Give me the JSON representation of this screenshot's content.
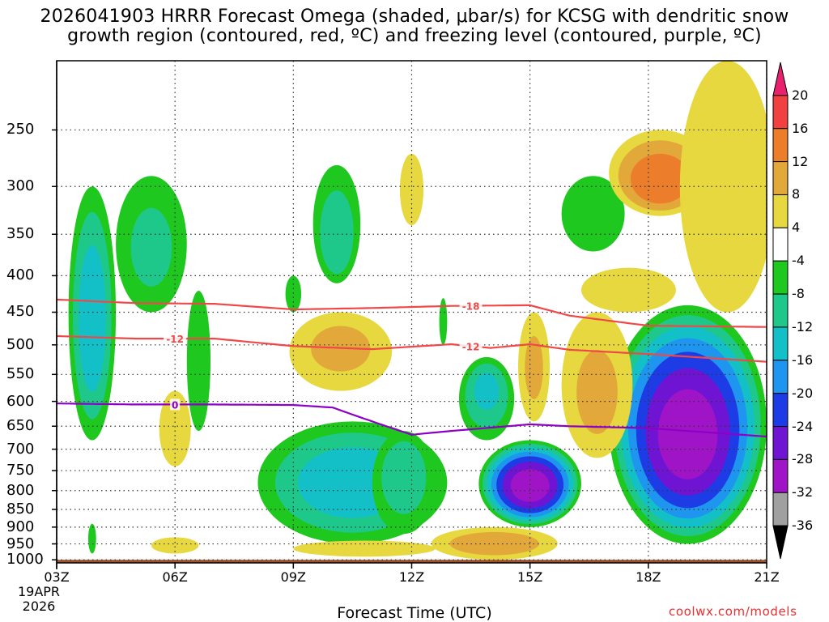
{
  "title": {
    "line1": "2026041903 HRRR Forecast Omega (shaded, μbar/s) for KCSG with dendritic snow",
    "line2": "growth region (contoured, red, ºC) and freezing level (contoured, purple, ºC)"
  },
  "footer": {
    "xlabel": "Forecast Time (UTC)",
    "date_line1": "19APR",
    "date_line2": "2026",
    "credit": "coolwx.com/models"
  },
  "colors": {
    "dgz_contour": "#f04848",
    "freezing_contour": "#8c00c8",
    "terrain": "#a0522d"
  },
  "chart_data": {
    "type": "heatmap",
    "title": "2026041903 HRRR Forecast Omega (shaded, μbar/s) for KCSG with dendritic snow growth region (contoured, red, ºC) and freezing level (contoured, purple, ºC)",
    "xlabel": "Forecast Time (UTC)",
    "ylabel": "",
    "x_ticks": [
      "03Z",
      "06Z",
      "09Z",
      "12Z",
      "15Z",
      "18Z",
      "21Z"
    ],
    "x_hours": [
      3,
      6,
      9,
      12,
      15,
      18,
      21
    ],
    "xlim": [
      3,
      21
    ],
    "y_ticks": [
      250,
      300,
      350,
      400,
      450,
      500,
      550,
      600,
      650,
      700,
      750,
      800,
      850,
      900,
      950,
      1000
    ],
    "ylim_hPa": [
      200,
      1010
    ],
    "y_scale": "log-pressure (inverted)",
    "grid": "dotted",
    "surface_pressure_hPa": 1000,
    "colorbar": {
      "label_values": [
        20,
        16,
        12,
        8,
        4,
        -4,
        -8,
        -12,
        -16,
        -20,
        -24,
        -28,
        -32,
        -36
      ],
      "bins": [
        {
          "lo": 20,
          "hi": 24,
          "color": "#e8206e"
        },
        {
          "lo": 16,
          "hi": 20,
          "color": "#f04040"
        },
        {
          "lo": 12,
          "hi": 16,
          "color": "#ec7d2a"
        },
        {
          "lo": 8,
          "hi": 12,
          "color": "#e2a93a"
        },
        {
          "lo": 4,
          "hi": 8,
          "color": "#e6d83e"
        },
        {
          "lo": -4,
          "hi": 4,
          "color": "#ffffff"
        },
        {
          "lo": -8,
          "hi": -4,
          "color": "#1ec81e"
        },
        {
          "lo": -12,
          "hi": -8,
          "color": "#1ec88a"
        },
        {
          "lo": -16,
          "hi": -12,
          "color": "#14c0c8"
        },
        {
          "lo": -20,
          "hi": -16,
          "color": "#1e96f0"
        },
        {
          "lo": -24,
          "hi": -20,
          "color": "#1e3ce6"
        },
        {
          "lo": -28,
          "hi": -24,
          "color": "#6e14d2"
        },
        {
          "lo": -32,
          "hi": -28,
          "color": "#a014c8"
        },
        {
          "lo": -36,
          "hi": -32,
          "color": "#a0a0a0"
        },
        {
          "lo": -40,
          "hi": -36,
          "color": "#000000"
        }
      ]
    },
    "omega_features": [
      {
        "kind": "ascent",
        "peak_ubar_s": -14,
        "t_center": 3.9,
        "p_center": 470,
        "t_halfwidth": 0.6,
        "p_top": 300,
        "p_bottom": 680
      },
      {
        "kind": "ascent",
        "peak_ubar_s": -8,
        "t_center": 5.4,
        "p_center": 370,
        "t_halfwidth": 0.9,
        "p_top": 290,
        "p_bottom": 450
      },
      {
        "kind": "ascent",
        "peak_ubar_s": -6,
        "t_center": 6.6,
        "p_center": 510,
        "t_halfwidth": 0.3,
        "p_top": 420,
        "p_bottom": 660
      },
      {
        "kind": "ascent",
        "peak_ubar_s": -6,
        "t_center": 3.9,
        "p_center": 940,
        "t_halfwidth": 0.1,
        "p_top": 890,
        "p_bottom": 980
      },
      {
        "kind": "ascent",
        "peak_ubar_s": -14,
        "t_center": 10.5,
        "p_center": 780,
        "t_halfwidth": 2.4,
        "p_top": 640,
        "p_bottom": 950
      },
      {
        "kind": "ascent",
        "peak_ubar_s": -10,
        "t_center": 11.8,
        "p_center": 740,
        "t_halfwidth": 0.8,
        "p_top": 660,
        "p_bottom": 920
      },
      {
        "kind": "ascent",
        "peak_ubar_s": -12,
        "t_center": 13.9,
        "p_center": 570,
        "t_halfwidth": 0.7,
        "p_top": 520,
        "p_bottom": 680
      },
      {
        "kind": "ascent",
        "peak_ubar_s": -30,
        "t_center": 15.0,
        "p_center": 790,
        "t_halfwidth": 1.3,
        "p_top": 680,
        "p_bottom": 900
      },
      {
        "kind": "ascent",
        "peak_ubar_s": -30,
        "t_center": 19.0,
        "p_center": 680,
        "t_halfwidth": 2.0,
        "p_top": 440,
        "p_bottom": 950
      },
      {
        "kind": "ascent",
        "peak_ubar_s": -10,
        "t_center": 10.1,
        "p_center": 370,
        "t_halfwidth": 0.6,
        "p_top": 280,
        "p_bottom": 410
      },
      {
        "kind": "ascent",
        "peak_ubar_s": -6,
        "t_center": 12.8,
        "p_center": 460,
        "t_halfwidth": 0.1,
        "p_top": 430,
        "p_bottom": 500
      },
      {
        "kind": "ascent",
        "peak_ubar_s": -6,
        "t_center": 16.6,
        "p_center": 320,
        "t_halfwidth": 0.8,
        "p_top": 290,
        "p_bottom": 370
      },
      {
        "kind": "ascent",
        "peak_ubar_s": -6,
        "t_center": 9.0,
        "p_center": 420,
        "t_halfwidth": 0.2,
        "p_top": 400,
        "p_bottom": 450
      },
      {
        "kind": "descent",
        "peak_ubar_s": 14,
        "t_center": 18.3,
        "p_center": 300,
        "t_halfwidth": 1.3,
        "p_top": 250,
        "p_bottom": 330
      },
      {
        "kind": "descent",
        "peak_ubar_s": 8,
        "t_center": 10.2,
        "p_center": 500,
        "t_halfwidth": 1.3,
        "p_top": 450,
        "p_bottom": 580
      },
      {
        "kind": "descent",
        "peak_ubar_s": 10,
        "t_center": 14.1,
        "p_center": 950,
        "t_halfwidth": 1.6,
        "p_top": 900,
        "p_bottom": 1000
      },
      {
        "kind": "descent",
        "peak_ubar_s": 8,
        "t_center": 16.7,
        "p_center": 600,
        "t_halfwidth": 0.9,
        "p_top": 450,
        "p_bottom": 720
      },
      {
        "kind": "descent",
        "peak_ubar_s": 8,
        "t_center": 15.1,
        "p_center": 540,
        "t_halfwidth": 0.4,
        "p_top": 450,
        "p_bottom": 640
      },
      {
        "kind": "descent",
        "peak_ubar_s": 6,
        "t_center": 20.0,
        "p_center": 350,
        "t_halfwidth": 1.2,
        "p_top": 200,
        "p_bottom": 450
      },
      {
        "kind": "descent",
        "peak_ubar_s": 6,
        "t_center": 6.0,
        "p_center": 640,
        "t_halfwidth": 0.4,
        "p_top": 580,
        "p_bottom": 740
      },
      {
        "kind": "descent",
        "peak_ubar_s": 6,
        "t_center": 6.0,
        "p_center": 955,
        "t_halfwidth": 0.6,
        "p_top": 930,
        "p_bottom": 980
      },
      {
        "kind": "descent",
        "peak_ubar_s": 6,
        "t_center": 12.0,
        "p_center": 300,
        "t_halfwidth": 0.3,
        "p_top": 270,
        "p_bottom": 340
      },
      {
        "kind": "descent",
        "peak_ubar_s": 6,
        "t_center": 17.5,
        "p_center": 410,
        "t_halfwidth": 1.2,
        "p_top": 390,
        "p_bottom": 450
      },
      {
        "kind": "descent",
        "peak_ubar_s": 6,
        "t_center": 10.8,
        "p_center": 965,
        "t_halfwidth": 1.8,
        "p_top": 940,
        "p_bottom": 990
      }
    ],
    "series": [
      {
        "name": "-18",
        "kind": "dgz_isotherm",
        "hours": [
          3,
          5,
          7,
          9,
          11,
          13,
          15,
          16,
          18,
          21
        ],
        "pressure_hPa": [
          432,
          437,
          438,
          446,
          444,
          441,
          440,
          455,
          470,
          472
        ]
      },
      {
        "name": "-12",
        "kind": "dgz_isotherm",
        "hours": [
          3,
          5,
          7,
          9,
          11,
          13,
          14,
          15,
          16,
          18,
          21
        ],
        "pressure_hPa": [
          486,
          490,
          490,
          502,
          507,
          499,
          505,
          499,
          508,
          515,
          528
        ]
      },
      {
        "name": "0",
        "kind": "freezing_level",
        "hours": [
          3,
          5,
          7,
          9,
          10,
          11,
          12,
          13,
          15,
          16,
          18,
          21
        ],
        "pressure_hPa": [
          604,
          606,
          606,
          607,
          612,
          640,
          668,
          660,
          646,
          650,
          654,
          672
        ]
      }
    ],
    "contour_labels": [
      {
        "text": "-18",
        "hour": 13.5,
        "series": "-18"
      },
      {
        "text": "-12",
        "hour": 6.0,
        "series": "-12"
      },
      {
        "text": "-12",
        "hour": 13.5,
        "series": "-12"
      },
      {
        "text": "0",
        "hour": 6.0,
        "series": "0"
      }
    ]
  }
}
